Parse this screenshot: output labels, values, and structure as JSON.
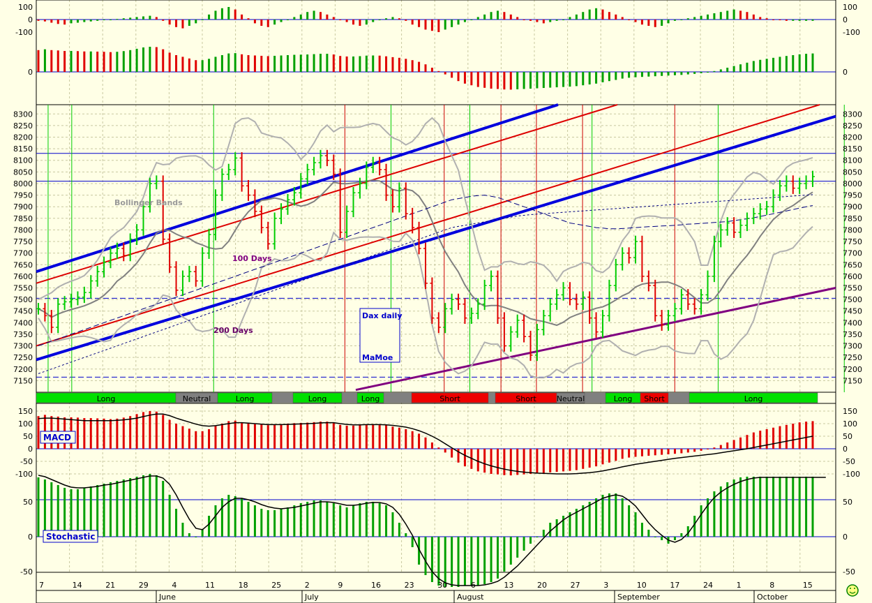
{
  "chart_data": {
    "type": "bar",
    "title": "Dax daily",
    "author": "MaMoe",
    "price_axis": {
      "ticks": [
        8300,
        8250,
        8200,
        8150,
        8100,
        8050,
        8000,
        7950,
        7900,
        7850,
        7800,
        7750,
        7700,
        7650,
        7600,
        7550,
        7500,
        7450,
        7400,
        7350,
        7300,
        7250,
        7200,
        7150
      ],
      "ylim": [
        7100,
        8340
      ]
    },
    "top_osc_axis": {
      "ticks": [
        100,
        0,
        -100
      ],
      "second_zero": 0
    },
    "macd_axis": {
      "ticks": [
        150,
        100,
        50,
        0,
        -50,
        -100
      ]
    },
    "stoch_axis": {
      "ticks": [
        50,
        0,
        -50
      ]
    },
    "x_day_ticks": [
      "7",
      "14",
      "21",
      "29",
      "4",
      "11",
      "18",
      "25",
      "2",
      "9",
      "16",
      "23",
      "30",
      "6",
      "13",
      "20",
      "27",
      "3",
      "10",
      "17",
      "24",
      "1",
      "8",
      "15"
    ],
    "months": [
      "June",
      "July",
      "August",
      "September",
      "October"
    ],
    "annotations": {
      "bollinger": "Bollinger Bands",
      "ma100": "100 Days",
      "ma200": "200 Days",
      "macd": "MACD",
      "stochastic": "Stochastic"
    },
    "regimes": [
      {
        "label": "Long",
        "state": "long"
      },
      {
        "label": "Neutral",
        "state": "neutral"
      },
      {
        "label": "Long",
        "state": "long"
      },
      {
        "label": "Long",
        "state": "long"
      },
      {
        "label": "Long",
        "state": "long"
      },
      {
        "label": "Short",
        "state": "short"
      },
      {
        "label": "Short",
        "state": "short"
      },
      {
        "label": "Neutral",
        "state": "neutral"
      },
      {
        "label": "Long",
        "state": "long"
      },
      {
        "label": "Short",
        "state": "short"
      },
      {
        "label": "Long",
        "state": "long"
      }
    ],
    "closes": [
      7460,
      7430,
      7380,
      7480,
      7490,
      7500,
      7510,
      7530,
      7580,
      7620,
      7660,
      7700,
      7720,
      7690,
      7760,
      7800,
      7900,
      8000,
      8010,
      7760,
      7640,
      7540,
      7600,
      7620,
      7580,
      7700,
      7780,
      7950,
      8040,
      8060,
      8110,
      7990,
      7950,
      7880,
      7810,
      7740,
      7850,
      7890,
      7930,
      7960,
      8020,
      8060,
      8090,
      8120,
      8100,
      8040,
      7790,
      7880,
      7960,
      8000,
      8070,
      8090,
      8060,
      7950,
      7900,
      7980,
      7870,
      7810,
      7720,
      7570,
      7420,
      7380,
      7460,
      7500,
      7480,
      7420,
      7440,
      7480,
      7560,
      7600,
      7420,
      7300,
      7360,
      7410,
      7340,
      7260,
      7370,
      7430,
      7480,
      7520,
      7550,
      7500,
      7480,
      7510,
      7420,
      7360,
      7430,
      7560,
      7650,
      7700,
      7680,
      7750,
      7600,
      7560,
      7430,
      7390,
      7430,
      7460,
      7520,
      7480,
      7460,
      7520,
      7600,
      7750,
      7800,
      7830,
      7790,
      7820,
      7850,
      7870,
      7890,
      7900,
      7950,
      7990,
      8010,
      7980,
      8000,
      8010,
      8030
    ],
    "ma100": [
      7300,
      7310,
      7320,
      7330,
      7340,
      7350,
      7360,
      7370,
      7380,
      7390,
      7400,
      7410,
      7420,
      7430,
      7440,
      7450,
      7460,
      7470,
      7480,
      7490,
      7500,
      7510,
      7520,
      7530,
      7540,
      7550,
      7560,
      7570,
      7580,
      7590,
      7600,
      7610,
      7620,
      7630,
      7640,
      7650,
      7660,
      7670,
      7680,
      7690,
      7700,
      7710,
      7720,
      7730,
      7740,
      7750,
      7760,
      7770,
      7780,
      7790,
      7800,
      7810,
      7820,
      7830,
      7840,
      7850,
      7860,
      7870,
      7880,
      7890,
      7900,
      7910,
      7920,
      7930,
      7935,
      7940,
      7945,
      7948,
      7950,
      7945,
      7940,
      7930,
      7920,
      7910,
      7900,
      7890,
      7880,
      7870,
      7860,
      7850,
      7840,
      7830,
      7825,
      7820,
      7815,
      7810,
      7808,
      7805,
      7805,
      7806,
      7808,
      7810,
      7812,
      7814,
      7815,
      7817,
      7818,
      7820,
      7822,
      7825,
      7826,
      7828,
      7830,
      7832,
      7834,
      7836,
      7840,
      7844,
      7848,
      7852,
      7858,
      7864,
      7870,
      7876,
      7882,
      7888,
      7894,
      7900,
      7905
    ],
    "ma200": [
      7180,
      7190,
      7200,
      7210,
      7220,
      7230,
      7240,
      7250,
      7260,
      7270,
      7280,
      7290,
      7300,
      7310,
      7320,
      7330,
      7340,
      7350,
      7360,
      7370,
      7380,
      7390,
      7400,
      7410,
      7420,
      7430,
      7440,
      7450,
      7460,
      7470,
      7480,
      7490,
      7500,
      7510,
      7520,
      7530,
      7540,
      7550,
      7560,
      7570,
      7580,
      7590,
      7600,
      7610,
      7620,
      7630,
      7640,
      7650,
      7660,
      7670,
      7680,
      7690,
      7700,
      7710,
      7720,
      7730,
      7740,
      7750,
      7760,
      7770,
      7780,
      7790,
      7800,
      7810,
      7815,
      7820,
      7825,
      7830,
      7835,
      7840,
      7845,
      7850,
      7855,
      7860,
      7863,
      7866,
      7868,
      7870,
      7872,
      7874,
      7876,
      7878,
      7880,
      7882,
      7884,
      7886,
      7888,
      7890,
      7892,
      7894,
      7896,
      7898,
      7900,
      7902,
      7904,
      7906,
      7908,
      7910,
      7912,
      7914,
      7916,
      7918,
      7920,
      7922,
      7924,
      7926,
      7928,
      7930,
      7932,
      7934,
      7936,
      7938,
      7940,
      7942,
      7944,
      7946,
      7948,
      7950,
      7952
    ],
    "macd_hist": [
      130,
      135,
      130,
      128,
      125,
      125,
      124,
      122,
      122,
      121,
      120,
      118,
      120,
      124,
      130,
      138,
      146,
      150,
      148,
      135,
      115,
      100,
      90,
      80,
      70,
      70,
      78,
      90,
      100,
      110,
      112,
      105,
      100,
      98,
      96,
      94,
      96,
      98,
      100,
      102,
      103,
      104,
      106,
      108,
      108,
      104,
      95,
      92,
      92,
      94,
      97,
      98,
      97,
      93,
      88,
      84,
      78,
      70,
      60,
      45,
      25,
      5,
      -15,
      -35,
      -55,
      -70,
      -80,
      -90,
      -95,
      -100,
      -102,
      -105,
      -106,
      -104,
      -102,
      -100,
      -98,
      -96,
      -94,
      -92,
      -90,
      -88,
      -85,
      -80,
      -75,
      -70,
      -62,
      -55,
      -48,
      -40,
      -35,
      -32,
      -30,
      -28,
      -26,
      -24,
      -22,
      -20,
      -18,
      -15,
      -12,
      -8,
      -2,
      5,
      15,
      25,
      35,
      45,
      55,
      65,
      72,
      78,
      84,
      90,
      95,
      100,
      105,
      108,
      110
    ],
    "macd_signal": [
      120,
      122,
      122,
      120,
      118,
      116,
      114,
      112,
      112,
      112,
      112,
      112,
      113,
      115,
      118,
      122,
      128,
      134,
      138,
      138,
      132,
      122,
      114,
      106,
      98,
      92,
      90,
      92,
      96,
      100,
      104,
      104,
      102,
      100,
      98,
      96,
      96,
      96,
      97,
      98,
      99,
      100,
      101,
      103,
      104,
      104,
      100,
      97,
      95,
      95,
      96,
      96,
      96,
      95,
      93,
      90,
      86,
      80,
      72,
      62,
      50,
      36,
      20,
      4,
      -12,
      -26,
      -38,
      -50,
      -60,
      -68,
      -75,
      -81,
      -86,
      -90,
      -93,
      -95,
      -97,
      -98,
      -99,
      -100,
      -100,
      -100,
      -99,
      -97,
      -95,
      -92,
      -88,
      -83,
      -78,
      -72,
      -67,
      -62,
      -58,
      -54,
      -50,
      -46,
      -42,
      -38,
      -35,
      -32,
      -29,
      -26,
      -23,
      -20,
      -16,
      -12,
      -8,
      -4,
      0,
      5,
      10,
      15,
      20,
      25,
      30,
      35,
      40,
      45,
      50
    ],
    "stoch_hist": [
      85,
      82,
      78,
      74,
      70,
      68,
      68,
      70,
      72,
      74,
      76,
      78,
      80,
      82,
      84,
      86,
      88,
      90,
      88,
      80,
      60,
      40,
      20,
      5,
      0,
      10,
      30,
      45,
      55,
      60,
      58,
      55,
      50,
      45,
      40,
      38,
      38,
      40,
      42,
      45,
      48,
      50,
      52,
      52,
      50,
      48,
      45,
      42,
      45,
      48,
      50,
      50,
      48,
      45,
      35,
      20,
      5,
      -15,
      -40,
      -55,
      -65,
      -70,
      -72,
      -72,
      -72,
      -70,
      -70,
      -70,
      -68,
      -65,
      -60,
      -50,
      -40,
      -30,
      -20,
      -10,
      0,
      10,
      20,
      25,
      30,
      35,
      40,
      45,
      50,
      55,
      60,
      62,
      62,
      55,
      45,
      35,
      20,
      10,
      0,
      -5,
      -10,
      -5,
      5,
      15,
      30,
      45,
      55,
      65,
      72,
      78,
      82,
      85,
      86,
      86,
      86,
      86,
      86,
      86,
      86,
      86,
      86,
      86,
      86
    ],
    "stoch_signal": [
      88,
      86,
      82,
      78,
      74,
      71,
      70,
      70,
      71,
      72,
      74,
      75,
      77,
      79,
      81,
      83,
      85,
      87,
      87,
      84,
      75,
      60,
      42,
      25,
      12,
      10,
      18,
      30,
      42,
      50,
      55,
      55,
      53,
      50,
      46,
      43,
      41,
      40,
      41,
      42,
      44,
      46,
      48,
      50,
      50,
      49,
      47,
      45,
      45,
      46,
      48,
      49,
      49,
      47,
      42,
      32,
      18,
      2,
      -18,
      -35,
      -50,
      -60,
      -66,
      -69,
      -70,
      -70,
      -70,
      -70,
      -69,
      -67,
      -64,
      -58,
      -50,
      -42,
      -32,
      -22,
      -12,
      -2,
      8,
      16,
      24,
      30,
      35,
      40,
      45,
      50,
      55,
      58,
      60,
      58,
      52,
      44,
      32,
      20,
      10,
      2,
      -5,
      -8,
      -4,
      5,
      18,
      32,
      45,
      56,
      64,
      70,
      75,
      79,
      82,
      84,
      85,
      85,
      85,
      85,
      85,
      85,
      85,
      85,
      85,
      85,
      85
    ],
    "top_osc1": [
      -10,
      -15,
      -25,
      -35,
      -40,
      -30,
      -25,
      -20,
      -15,
      -10,
      -5,
      0,
      5,
      10,
      15,
      20,
      25,
      30,
      20,
      -10,
      -40,
      -60,
      -70,
      -50,
      -30,
      0,
      40,
      70,
      90,
      100,
      80,
      40,
      10,
      -30,
      -50,
      -60,
      -40,
      -20,
      0,
      20,
      40,
      60,
      70,
      60,
      40,
      20,
      0,
      -20,
      -40,
      -50,
      -40,
      -20,
      0,
      10,
      20,
      10,
      -10,
      -40,
      -60,
      -80,
      -90,
      -100,
      -80,
      -60,
      -40,
      -20,
      0,
      20,
      40,
      60,
      70,
      60,
      40,
      20,
      0,
      -10,
      -20,
      -30,
      -20,
      -10,
      0,
      20,
      40,
      60,
      80,
      90,
      80,
      60,
      40,
      20,
      0,
      -20,
      -40,
      -50,
      -60,
      -50,
      -30,
      -10,
      0,
      10,
      20,
      30,
      40,
      50,
      60,
      70,
      80,
      70,
      60,
      40,
      20,
      10,
      0,
      -5,
      -10,
      -10,
      -10,
      -10,
      -10
    ]
  }
}
